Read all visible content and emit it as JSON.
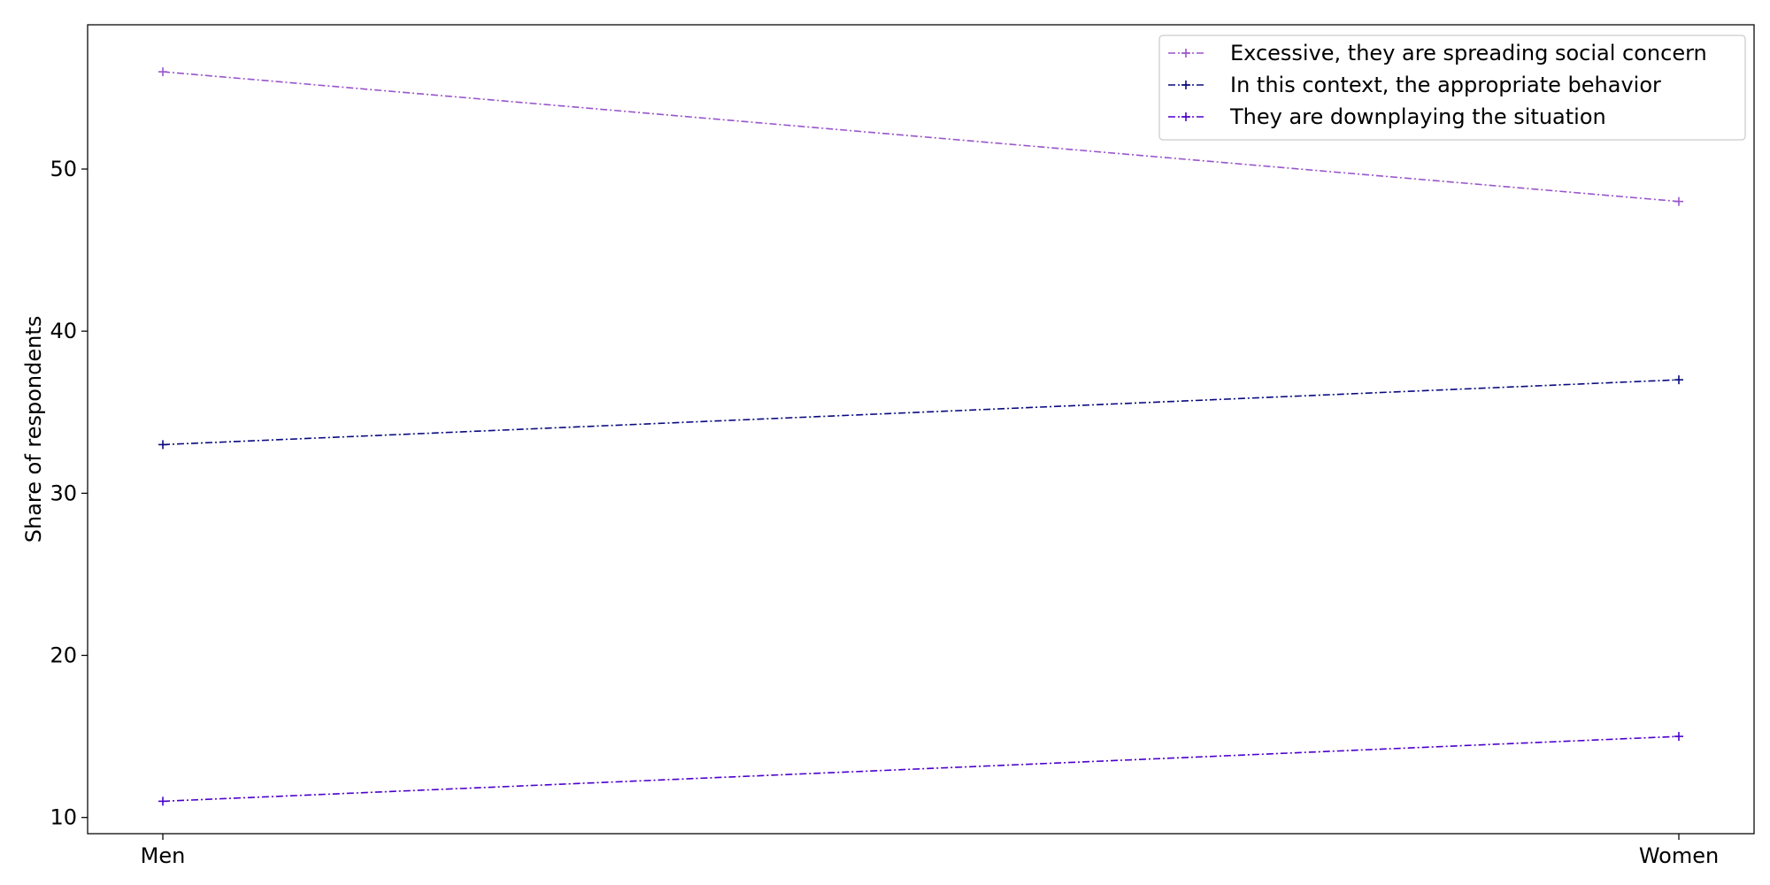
{
  "chart_data": {
    "type": "line",
    "title": "",
    "xlabel": "",
    "ylabel": "Share of respondents",
    "categories": [
      "Men",
      "Women"
    ],
    "ylim": [
      9,
      58.9
    ],
    "yticks": [
      10,
      20,
      30,
      40,
      50
    ],
    "grid": false,
    "legend_position": "top-right",
    "series": [
      {
        "name": "Excessive, they are spreading social concern",
        "values": [
          56,
          48
        ],
        "color": "#9955cc",
        "line_style": "dash-dot",
        "marker": "+"
      },
      {
        "name": "In this context, the appropriate behavior",
        "values": [
          33,
          37
        ],
        "color": "#0a0a80",
        "line_style": "dash-dot",
        "marker": "+"
      },
      {
        "name": "They are downplaying the situation",
        "values": [
          11,
          15
        ],
        "color": "#4d00cc",
        "line_style": "dash-dot",
        "marker": "+"
      }
    ]
  }
}
